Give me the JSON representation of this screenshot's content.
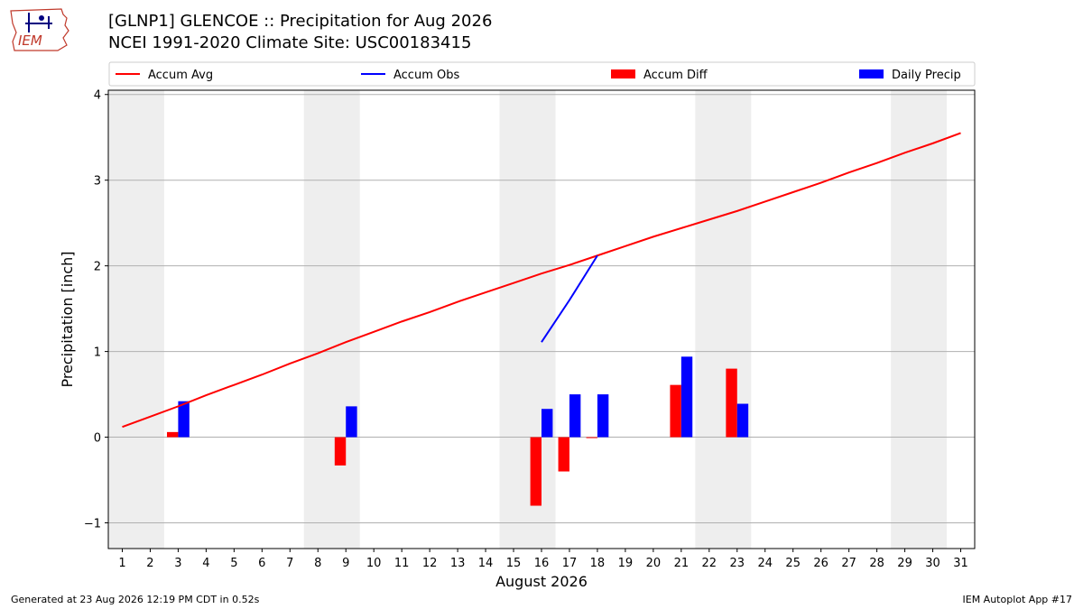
{
  "header": {
    "title_line1": "[GLNP1] GLENCOE :: Precipitation for Aug 2026",
    "title_line2": "NCEI 1991-2020 Climate Site: USC00183415",
    "logo_text": "IEM"
  },
  "footer": {
    "generated": "Generated at 23 Aug 2026 12:19 PM CDT in 0.52s",
    "app": "IEM Autoplot App #17"
  },
  "chart_data": {
    "type": "bar",
    "xlabel": "August 2026",
    "ylabel": "Precipitation [inch]",
    "days": [
      1,
      2,
      3,
      4,
      5,
      6,
      7,
      8,
      9,
      10,
      11,
      12,
      13,
      14,
      15,
      16,
      17,
      18,
      19,
      20,
      21,
      22,
      23,
      24,
      25,
      26,
      27,
      28,
      29,
      30,
      31
    ],
    "xlim": [
      0.5,
      31.5
    ],
    "ylim": [
      -1.3,
      4.05
    ],
    "yticks": [
      -1,
      0,
      1,
      2,
      3,
      4
    ],
    "ytick_labels": [
      "−1",
      "0",
      "1",
      "2",
      "3",
      "4"
    ],
    "grid": "horizontal",
    "legend_placement": "top, above plot",
    "weekend_shading": [
      [
        1,
        2
      ],
      [
        8,
        9
      ],
      [
        15,
        16
      ],
      [
        22,
        23
      ],
      [
        29,
        30
      ]
    ],
    "colors": {
      "accum_avg": "#ff0000",
      "accum_obs": "#0000ff",
      "accum_diff": "#ff0000",
      "daily_precip": "#0000ff",
      "weekend_band": "#eeeeee",
      "grid": "#b0b0b0"
    },
    "legend": [
      {
        "label": "Accum Avg",
        "kind": "line",
        "color": "#ff0000"
      },
      {
        "label": "Accum Obs",
        "kind": "line",
        "color": "#0000ff"
      },
      {
        "label": "Accum Diff",
        "kind": "bar",
        "color": "#ff0000"
      },
      {
        "label": "Daily Precip",
        "kind": "bar",
        "color": "#0000ff"
      }
    ],
    "series": [
      {
        "name": "Accum Avg",
        "type": "line",
        "x": [
          1,
          2,
          3,
          4,
          5,
          6,
          7,
          8,
          9,
          10,
          11,
          12,
          13,
          14,
          15,
          16,
          17,
          18,
          19,
          20,
          21,
          22,
          23,
          24,
          25,
          26,
          27,
          28,
          29,
          30,
          31
        ],
        "values": [
          0.12,
          0.24,
          0.36,
          0.49,
          0.61,
          0.73,
          0.86,
          0.98,
          1.11,
          1.23,
          1.35,
          1.46,
          1.58,
          1.69,
          1.8,
          1.91,
          2.01,
          2.12,
          2.23,
          2.34,
          2.44,
          2.54,
          2.64,
          2.75,
          2.86,
          2.97,
          3.09,
          3.2,
          3.32,
          3.43,
          3.55
        ]
      },
      {
        "name": "Accum Obs",
        "type": "line",
        "x": [
          16,
          17,
          18
        ],
        "values": [
          1.11,
          1.6,
          2.12
        ]
      },
      {
        "name": "Accum Diff",
        "type": "bar",
        "x": [
          3,
          9,
          16,
          17,
          18,
          21,
          23
        ],
        "values": [
          0.06,
          -0.33,
          -0.8,
          -0.4,
          -0.01,
          0.61,
          0.8
        ]
      },
      {
        "name": "Daily Precip",
        "type": "bar",
        "x": [
          3,
          9,
          16,
          17,
          18,
          21,
          23
        ],
        "values": [
          0.42,
          0.36,
          0.33,
          0.5,
          0.5,
          0.94,
          0.39
        ]
      }
    ]
  }
}
